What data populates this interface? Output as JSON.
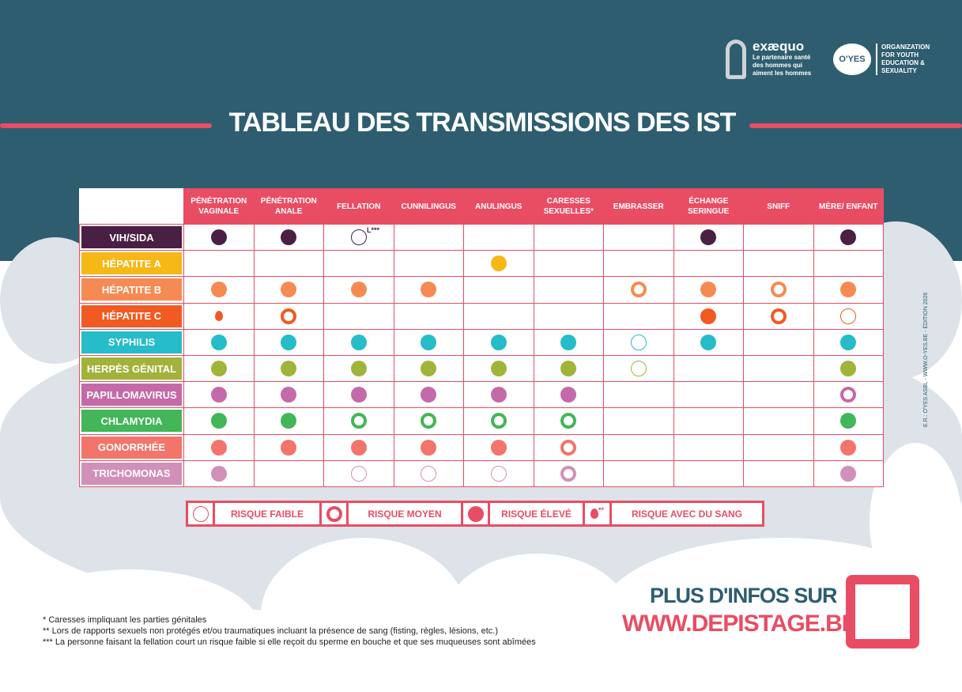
{
  "logos": {
    "exaequo": {
      "name": "exæquo",
      "tagline": "Le partenaire santé des hommes qui aiment les hommes"
    },
    "oyes": {
      "name": "O'YES",
      "tagline": "ORGANIZATION FOR YOUTH EDUCATION & SEXUALITY"
    }
  },
  "title": "TABLEAU DES TRANSMISSIONS DES IST",
  "columns": [
    "PÉNÉTRATION VAGINALE",
    "PÉNÉTRATION ANALE",
    "FELLATION",
    "CUNNILINGUS",
    "ANULINGUS",
    "CARESSES SEXUELLES*",
    "EMBRASSER",
    "ÉCHANGE SERINGUE",
    "SNIFF",
    "MÈRE/ ENFANT"
  ],
  "rows": [
    {
      "label": "VIH/SIDA",
      "color": "#4a1f44",
      "text": "#fff",
      "cells": [
        "H",
        "H",
        "L***",
        "",
        "",
        "",
        "",
        "H",
        "",
        "H"
      ]
    },
    {
      "label": "HÉPATITE A",
      "color": "#f5b817",
      "text": "#fff",
      "cells": [
        "",
        "",
        "",
        "",
        "H",
        "",
        "",
        "",
        "",
        ""
      ]
    },
    {
      "label": "HÉPATITE B",
      "color": "#f58b52",
      "text": "#fff",
      "cells": [
        "H",
        "H",
        "H",
        "H",
        "",
        "",
        "M",
        "H",
        "M",
        "H"
      ]
    },
    {
      "label": "HÉPATITE C",
      "color": "#f15a22",
      "text": "#fff",
      "cells": [
        "B",
        "M",
        "",
        "",
        "",
        "",
        "",
        "H",
        "M",
        "L"
      ]
    },
    {
      "label": "SYPHILIS",
      "color": "#26bcc9",
      "text": "#fff",
      "cells": [
        "H",
        "H",
        "H",
        "H",
        "H",
        "H",
        "L",
        "H",
        "",
        "H"
      ]
    },
    {
      "label": "HERPÈS GÉNITAL",
      "color": "#a2b33a",
      "text": "#fff",
      "cells": [
        "H",
        "H",
        "H",
        "H",
        "H",
        "H",
        "L",
        "",
        "",
        "H"
      ]
    },
    {
      "label": "PAPILLOMAVIRUS",
      "color": "#c46aa8",
      "text": "#fff",
      "cells": [
        "H",
        "H",
        "H",
        "H",
        "H",
        "H",
        "",
        "",
        "",
        "M"
      ]
    },
    {
      "label": "CHLAMYDIA",
      "color": "#42b658",
      "text": "#fff",
      "cells": [
        "H",
        "H",
        "M",
        "M",
        "M",
        "M",
        "",
        "",
        "",
        "H"
      ]
    },
    {
      "label": "GONORRHÉE",
      "color": "#f2746a",
      "text": "#fff",
      "cells": [
        "H",
        "H",
        "H",
        "H",
        "H",
        "M",
        "",
        "",
        "",
        "H"
      ]
    },
    {
      "label": "TRICHOMONAS",
      "color": "#d190b8",
      "text": "#fff",
      "cells": [
        "H",
        "",
        "L",
        "L",
        "L",
        "M",
        "",
        "",
        "",
        "H"
      ]
    }
  ],
  "legend": {
    "low": "RISQUE FAIBLE",
    "medium": "RISQUE MOYEN",
    "high": "RISQUE ÉLEVÉ",
    "blood": "RISQUE AVEC DU SANG",
    "blood_mark": "**",
    "accent": "#e84d64"
  },
  "side_text": "E.R.: O'YES ASBL - WWW.O-YES.BE - ÉDITION 2026",
  "notes": [
    "* Caresses impliquant les parties génitales",
    "** Lors de rapports sexuels non protégés et/ou traumatiques incluant la présence de sang (fisting, règles, lésions, etc.)",
    "*** La personne faisant la fellation court un risque faible si elle reçoit du sperme en bouche et que ses muqueuses sont abîmées"
  ],
  "info": {
    "line1": "PLUS D'INFOS SUR",
    "line2": "WWW.DEPISTAGE.BE"
  }
}
